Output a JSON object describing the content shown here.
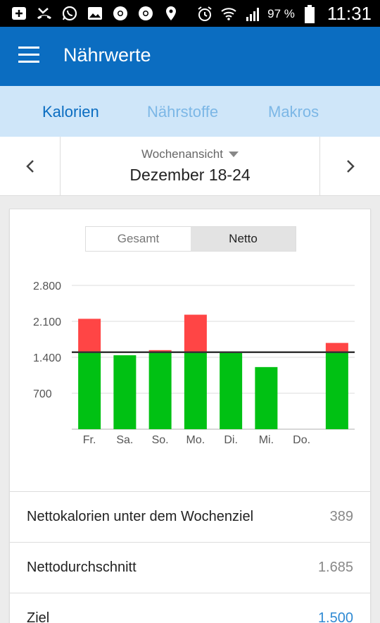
{
  "status_bar": {
    "battery": "97 %",
    "time": "11:31"
  },
  "app_bar": {
    "title": "Nährwerte"
  },
  "tabs": [
    {
      "label": "Kalorien",
      "active": true
    },
    {
      "label": "Nährstoffe",
      "active": false
    },
    {
      "label": "Makros",
      "active": false
    }
  ],
  "week_nav": {
    "view_label": "Wochenansicht",
    "range": "Dezember 18-24"
  },
  "toggle": {
    "options": [
      "Gesamt",
      "Netto"
    ],
    "selected": "Netto"
  },
  "colors": {
    "accent": "#0b6dc1",
    "under_goal": "#00c113",
    "over_goal": "#ff4545",
    "goal_line": "#333333"
  },
  "chart_data": {
    "type": "bar",
    "stacked": true,
    "categories": [
      "Fr.",
      "Sa.",
      "So.",
      "Mo.",
      "Di.",
      "Mi.",
      "Do.",
      ""
    ],
    "y_ticks": [
      "2.800",
      "2.100",
      "1.400",
      "700"
    ],
    "ylim": [
      0,
      2800
    ],
    "goal": 1500,
    "series": [
      {
        "values": [
          1500,
          1440,
          1500,
          1500,
          1500,
          1210,
          0,
          1500
        ]
      },
      {
        "values": [
          650,
          0,
          40,
          730,
          0,
          0,
          0,
          180
        ]
      }
    ],
    "grid": true
  },
  "summary": [
    {
      "label": "Nettokalorien unter dem Wochenziel",
      "value": "389",
      "link": false
    },
    {
      "label": "Nettodurchschnitt",
      "value": "1.685",
      "link": false
    },
    {
      "label": "Ziel",
      "value": "1.500",
      "link": true
    }
  ]
}
